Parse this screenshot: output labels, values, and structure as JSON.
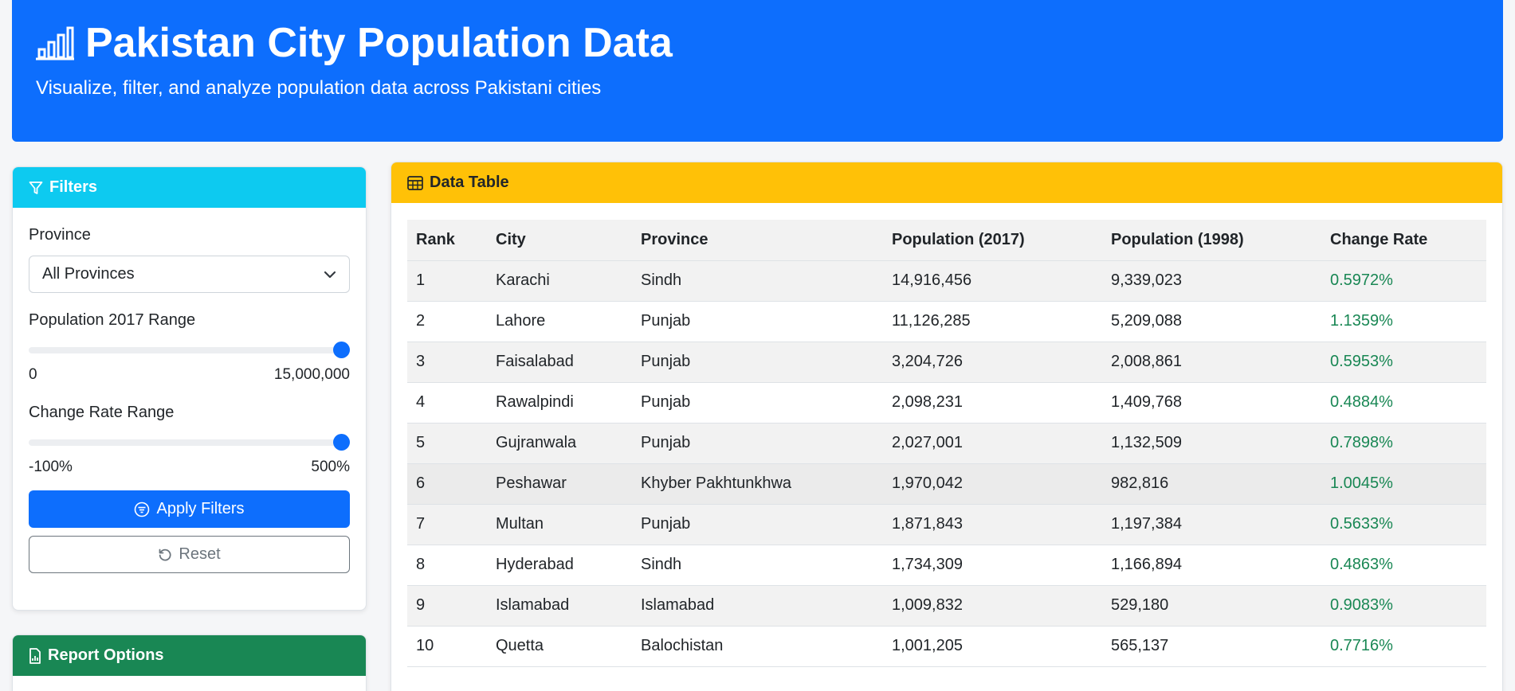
{
  "header": {
    "title": "Pakistan City Population Data",
    "subtitle": "Visualize, filter, and analyze population data across Pakistani cities",
    "icon": "bar-chart-icon"
  },
  "filters": {
    "title": "Filters",
    "province_label": "Province",
    "province_selected": "All Provinces",
    "pop_range_label": "Population 2017 Range",
    "pop_range_min": "0",
    "pop_range_max": "15,000,000",
    "pop_slider_fraction": 1.0,
    "rate_range_label": "Change Rate Range",
    "rate_range_min": "-100%",
    "rate_range_max": "500%",
    "rate_slider_fraction": 1.0,
    "apply_label": "Apply Filters",
    "reset_label": "Reset"
  },
  "report": {
    "title": "Report Options"
  },
  "table": {
    "title": "Data Table",
    "columns": [
      "Rank",
      "City",
      "Province",
      "Population (2017)",
      "Population (1998)",
      "Change Rate"
    ],
    "rows": [
      [
        "1",
        "Karachi",
        "Sindh",
        "14,916,456",
        "9,339,023",
        "0.5972%"
      ],
      [
        "2",
        "Lahore",
        "Punjab",
        "11,126,285",
        "5,209,088",
        "1.1359%"
      ],
      [
        "3",
        "Faisalabad",
        "Punjab",
        "3,204,726",
        "2,008,861",
        "0.5953%"
      ],
      [
        "4",
        "Rawalpindi",
        "Punjab",
        "2,098,231",
        "1,409,768",
        "0.4884%"
      ],
      [
        "5",
        "Gujranwala",
        "Punjab",
        "2,027,001",
        "1,132,509",
        "0.7898%"
      ],
      [
        "6",
        "Peshawar",
        "Khyber Pakhtunkhwa",
        "1,970,042",
        "982,816",
        "1.0045%"
      ],
      [
        "7",
        "Multan",
        "Punjab",
        "1,871,843",
        "1,197,384",
        "0.5633%"
      ],
      [
        "8",
        "Hyderabad",
        "Sindh",
        "1,734,309",
        "1,166,894",
        "0.4863%"
      ],
      [
        "9",
        "Islamabad",
        "Islamabad",
        "1,009,832",
        "529,180",
        "0.9083%"
      ],
      [
        "10",
        "Quetta",
        "Balochistan",
        "1,001,205",
        "565,137",
        "0.7716%"
      ]
    ]
  },
  "colors": {
    "primary": "#0d6efd",
    "info": "#0dcaf0",
    "warning": "#ffc107",
    "success": "#198754"
  }
}
